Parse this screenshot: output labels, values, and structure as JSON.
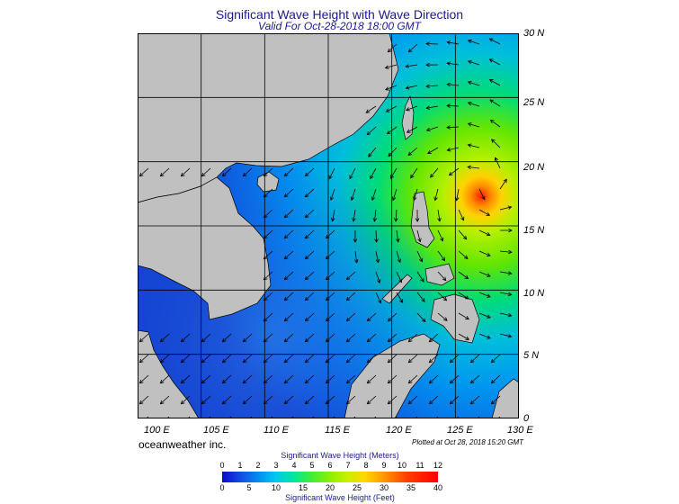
{
  "title": "Significant Wave Height with Wave Direction",
  "subtitle": "Valid For Oct-28-2018 18:00 GMT",
  "brand": "oceanweather inc.",
  "plotted": "Plotted at Oct 28, 2018 15:20 GMT",
  "lat_labels": [
    "0",
    "5 N",
    "10 N",
    "15 N",
    "20 N",
    "25 N",
    "30 N"
  ],
  "lon_labels": [
    "100 E",
    "105 E",
    "110 E",
    "115 E",
    "120 E",
    "125 E",
    "130 E"
  ],
  "legend": {
    "meters_title": "Significant Wave Height (Meters)",
    "feet_title": "Significant Wave Height (Feet)",
    "meters_ticks": [
      "0",
      "1",
      "2",
      "3",
      "4",
      "5",
      "6",
      "7",
      "8",
      "9",
      "10",
      "11",
      "12"
    ],
    "feet_ticks": [
      "0",
      "5",
      "10",
      "15",
      "20",
      "25",
      "30",
      "35",
      "40"
    ]
  },
  "colors": {
    "land": "#c0c0c0",
    "low_wave": "#1432d2",
    "mid_wave": "#00a0f0",
    "high_wave": "#78f000",
    "peak_wave": "#ff2800"
  },
  "map": {
    "lon_range": [
      100,
      130
    ],
    "lat_range": [
      0,
      30
    ],
    "storm_center": {
      "lon": 127.2,
      "lat": 18.2
    }
  }
}
